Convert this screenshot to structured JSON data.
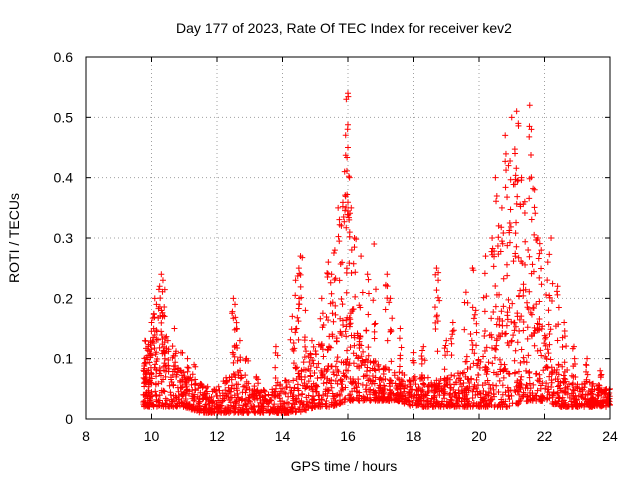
{
  "chart_data": {
    "type": "scatter",
    "title": "Day 177 of 2023, Rate Of TEC Index for receiver kev2",
    "xlabel": "GPS time / hours",
    "ylabel": "ROTI / TECUs",
    "xlim": [
      8,
      24
    ],
    "ylim": [
      0,
      0.6
    ],
    "xticks": [
      "8",
      "10",
      "12",
      "14",
      "16",
      "18",
      "20",
      "22",
      "24"
    ],
    "yticks": [
      "0",
      "0.1",
      "0.2",
      "0.3",
      "0.4",
      "0.5",
      "0.6"
    ],
    "grid": true,
    "marker": "+",
    "series_color": "#ff0000",
    "series": [
      {
        "name": "ROTI",
        "points": [
          [
            9.8,
            0.13
          ],
          [
            9.9,
            0.12
          ],
          [
            10.0,
            0.16
          ],
          [
            10.1,
            0.2
          ],
          [
            10.15,
            0.19
          ],
          [
            10.25,
            0.22
          ],
          [
            10.3,
            0.24
          ],
          [
            10.35,
            0.23
          ],
          [
            10.4,
            0.17
          ],
          [
            10.5,
            0.13
          ],
          [
            10.7,
            0.15
          ],
          [
            10.9,
            0.11
          ],
          [
            11.1,
            0.1
          ],
          [
            11.3,
            0.09
          ],
          [
            12.5,
            0.2
          ],
          [
            12.55,
            0.19
          ],
          [
            12.6,
            0.15
          ],
          [
            12.7,
            0.13
          ],
          [
            12.9,
            0.1
          ],
          [
            13.2,
            0.07
          ],
          [
            13.8,
            0.12
          ],
          [
            14.3,
            0.17
          ],
          [
            14.4,
            0.23
          ],
          [
            14.5,
            0.25
          ],
          [
            14.55,
            0.27
          ],
          [
            14.7,
            0.18
          ],
          [
            14.9,
            0.13
          ],
          [
            15.2,
            0.2
          ],
          [
            15.4,
            0.26
          ],
          [
            15.5,
            0.24
          ],
          [
            15.6,
            0.28
          ],
          [
            15.7,
            0.35
          ],
          [
            15.8,
            0.32
          ],
          [
            15.9,
            0.41
          ],
          [
            15.95,
            0.53
          ],
          [
            16.0,
            0.54
          ],
          [
            16.0,
            0.45
          ],
          [
            16.05,
            0.4
          ],
          [
            16.1,
            0.35
          ],
          [
            16.2,
            0.3
          ],
          [
            16.4,
            0.27
          ],
          [
            16.6,
            0.24
          ],
          [
            16.8,
            0.29
          ],
          [
            17.2,
            0.24
          ],
          [
            17.3,
            0.2
          ],
          [
            17.6,
            0.15
          ],
          [
            18.0,
            0.11
          ],
          [
            18.3,
            0.12
          ],
          [
            18.7,
            0.25
          ],
          [
            18.75,
            0.23
          ],
          [
            19.0,
            0.13
          ],
          [
            19.2,
            0.16
          ],
          [
            19.6,
            0.21
          ],
          [
            19.8,
            0.25
          ],
          [
            19.9,
            0.18
          ],
          [
            20.2,
            0.27
          ],
          [
            20.4,
            0.3
          ],
          [
            20.5,
            0.4
          ],
          [
            20.6,
            0.32
          ],
          [
            20.7,
            0.35
          ],
          [
            20.8,
            0.47
          ],
          [
            20.9,
            0.42
          ],
          [
            21.0,
            0.5
          ],
          [
            21.1,
            0.44
          ],
          [
            21.15,
            0.51
          ],
          [
            21.2,
            0.49
          ],
          [
            21.3,
            0.4
          ],
          [
            21.4,
            0.36
          ],
          [
            21.55,
            0.52
          ],
          [
            21.6,
            0.48
          ],
          [
            21.7,
            0.38
          ],
          [
            21.8,
            0.3
          ],
          [
            21.9,
            0.28
          ],
          [
            22.1,
            0.26
          ],
          [
            22.2,
            0.3
          ],
          [
            22.4,
            0.22
          ],
          [
            22.6,
            0.16
          ],
          [
            22.9,
            0.12
          ],
          [
            23.3,
            0.1
          ],
          [
            23.7,
            0.08
          ],
          [
            24.0,
            0.05
          ]
        ],
        "baseline_band": [
          [
            9.75,
            0.02,
            0.1
          ],
          [
            10.0,
            0.02,
            0.14
          ],
          [
            10.5,
            0.02,
            0.12
          ],
          [
            11.0,
            0.02,
            0.08
          ],
          [
            11.5,
            0.01,
            0.06
          ],
          [
            12.0,
            0.01,
            0.05
          ],
          [
            12.5,
            0.01,
            0.09
          ],
          [
            13.0,
            0.01,
            0.05
          ],
          [
            13.5,
            0.01,
            0.05
          ],
          [
            14.0,
            0.01,
            0.06
          ],
          [
            14.5,
            0.01,
            0.1
          ],
          [
            15.0,
            0.02,
            0.12
          ],
          [
            15.5,
            0.02,
            0.14
          ],
          [
            16.0,
            0.03,
            0.18
          ],
          [
            16.5,
            0.03,
            0.12
          ],
          [
            17.0,
            0.03,
            0.09
          ],
          [
            17.5,
            0.03,
            0.08
          ],
          [
            18.0,
            0.02,
            0.07
          ],
          [
            18.5,
            0.02,
            0.07
          ],
          [
            19.0,
            0.02,
            0.07
          ],
          [
            19.5,
            0.02,
            0.08
          ],
          [
            20.0,
            0.02,
            0.1
          ],
          [
            20.5,
            0.02,
            0.16
          ],
          [
            21.0,
            0.02,
            0.22
          ],
          [
            21.5,
            0.03,
            0.22
          ],
          [
            22.0,
            0.03,
            0.14
          ],
          [
            22.5,
            0.02,
            0.09
          ],
          [
            23.0,
            0.02,
            0.07
          ],
          [
            23.5,
            0.02,
            0.06
          ],
          [
            24.0,
            0.02,
            0.05
          ]
        ]
      }
    ]
  }
}
